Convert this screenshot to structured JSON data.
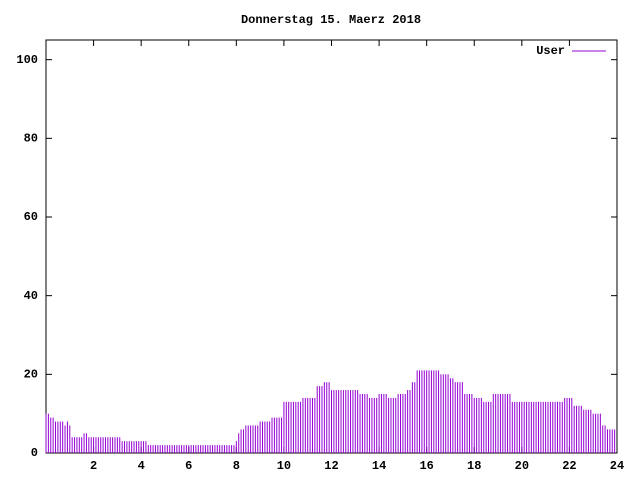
{
  "chart_data": {
    "type": "impulse",
    "title": "Donnerstag 15. Maerz 2018",
    "x": [
      0,
      0.1,
      0.2,
      0.3,
      0.4,
      0.5,
      0.6,
      0.7,
      0.8,
      0.9,
      1,
      1.1,
      1.2,
      1.3,
      1.4,
      1.5,
      1.6,
      1.7,
      1.8,
      1.9,
      2,
      2.1,
      2.2,
      2.3,
      2.4,
      2.5,
      2.6,
      2.7,
      2.8,
      2.9,
      3,
      3.1,
      3.2,
      3.3,
      3.4,
      3.5,
      3.6,
      3.7,
      3.8,
      3.9,
      4,
      4.1,
      4.2,
      4.3,
      4.4,
      4.5,
      4.6,
      4.7,
      4.8,
      4.9,
      5,
      5.1,
      5.2,
      5.3,
      5.4,
      5.5,
      5.6,
      5.7,
      5.8,
      5.9,
      6,
      6.1,
      6.2,
      6.3,
      6.4,
      6.5,
      6.6,
      6.7,
      6.8,
      6.9,
      7,
      7.1,
      7.2,
      7.3,
      7.4,
      7.5,
      7.6,
      7.7,
      7.8,
      7.9,
      8,
      8.1,
      8.2,
      8.3,
      8.4,
      8.5,
      8.6,
      8.7,
      8.8,
      8.9,
      9,
      9.1,
      9.2,
      9.3,
      9.4,
      9.5,
      9.6,
      9.7,
      9.8,
      9.9,
      10,
      10.1,
      10.2,
      10.3,
      10.4,
      10.5,
      10.6,
      10.7,
      10.8,
      10.9,
      11,
      11.1,
      11.2,
      11.3,
      11.4,
      11.5,
      11.6,
      11.7,
      11.8,
      11.9,
      12,
      12.1,
      12.2,
      12.3,
      12.4,
      12.5,
      12.6,
      12.7,
      12.8,
      12.9,
      13,
      13.1,
      13.2,
      13.3,
      13.4,
      13.5,
      13.6,
      13.7,
      13.8,
      13.9,
      14,
      14.1,
      14.2,
      14.3,
      14.4,
      14.5,
      14.6,
      14.7,
      14.8,
      14.9,
      15,
      15.1,
      15.2,
      15.3,
      15.4,
      15.5,
      15.6,
      15.7,
      15.8,
      15.9,
      16,
      16.1,
      16.2,
      16.3,
      16.4,
      16.5,
      16.6,
      16.7,
      16.8,
      16.9,
      17,
      17.1,
      17.2,
      17.3,
      17.4,
      17.5,
      17.6,
      17.7,
      17.8,
      17.9,
      18,
      18.1,
      18.2,
      18.3,
      18.4,
      18.5,
      18.6,
      18.7,
      18.8,
      18.9,
      19,
      19.1,
      19.2,
      19.3,
      19.4,
      19.5,
      19.6,
      19.7,
      19.8,
      19.9,
      20,
      20.1,
      20.2,
      20.3,
      20.4,
      20.5,
      20.6,
      20.7,
      20.8,
      20.9,
      21,
      21.1,
      21.2,
      21.3,
      21.4,
      21.5,
      21.6,
      21.7,
      21.8,
      21.9,
      22,
      22.1,
      22.2,
      22.3,
      22.4,
      22.5,
      22.6,
      22.7,
      22.8,
      22.9,
      23,
      23.1,
      23.2,
      23.3,
      23.4,
      23.5,
      23.6,
      23.7,
      23.8,
      23.9
    ],
    "series": [
      {
        "name": "User",
        "color": "#9400d3",
        "values": [
          10,
          10,
          9,
          9,
          8,
          8,
          8,
          8,
          7,
          8,
          7,
          4,
          4,
          4,
          4,
          4,
          5,
          5,
          4,
          4,
          4,
          4,
          4,
          4,
          4,
          4,
          4,
          4,
          4,
          4,
          4,
          4,
          3,
          3,
          3,
          3,
          3,
          3,
          3,
          3,
          3,
          3,
          3,
          2,
          2,
          2,
          2,
          2,
          2,
          2,
          2,
          2,
          2,
          2,
          2,
          2,
          2,
          2,
          2,
          2,
          2,
          2,
          2,
          2,
          2,
          2,
          2,
          2,
          2,
          2,
          2,
          2,
          2,
          2,
          2,
          2,
          2,
          2,
          2,
          2,
          3,
          5,
          6,
          6,
          7,
          7,
          7,
          7,
          7,
          7,
          8,
          8,
          8,
          8,
          8,
          9,
          9,
          9,
          9,
          9,
          13,
          13,
          13,
          13,
          13,
          13,
          13,
          13,
          14,
          14,
          14,
          14,
          14,
          14,
          17,
          17,
          17,
          18,
          18,
          18,
          16,
          16,
          16,
          16,
          16,
          16,
          16,
          16,
          16,
          16,
          16,
          16,
          15,
          15,
          15,
          15,
          14,
          14,
          14,
          14,
          15,
          15,
          15,
          15,
          14,
          14,
          14,
          14,
          15,
          15,
          15,
          15,
          16,
          16,
          18,
          18,
          21,
          21,
          21,
          21,
          21,
          21,
          21,
          21,
          21,
          21,
          20,
          20,
          20,
          20,
          19,
          19,
          18,
          18,
          18,
          18,
          15,
          15,
          15,
          15,
          14,
          14,
          14,
          14,
          13,
          13,
          13,
          13,
          15,
          15,
          15,
          15,
          15,
          15,
          15,
          15,
          13,
          13,
          13,
          13,
          13,
          13,
          13,
          13,
          13,
          13,
          13,
          13,
          13,
          13,
          13,
          13,
          13,
          13,
          13,
          13,
          13,
          13,
          14,
          14,
          14,
          14,
          12,
          12,
          12,
          12,
          11,
          11,
          11,
          11,
          10,
          10,
          10,
          10,
          7,
          7,
          6,
          6,
          6,
          6
        ]
      }
    ],
    "xlim": [
      0,
      24
    ],
    "xticks": [
      2,
      4,
      6,
      8,
      10,
      12,
      14,
      16,
      18,
      20,
      22,
      24
    ],
    "ylim": [
      0,
      105
    ],
    "yticks": [
      0,
      20,
      40,
      60,
      80,
      100
    ],
    "legend": "top-right"
  }
}
